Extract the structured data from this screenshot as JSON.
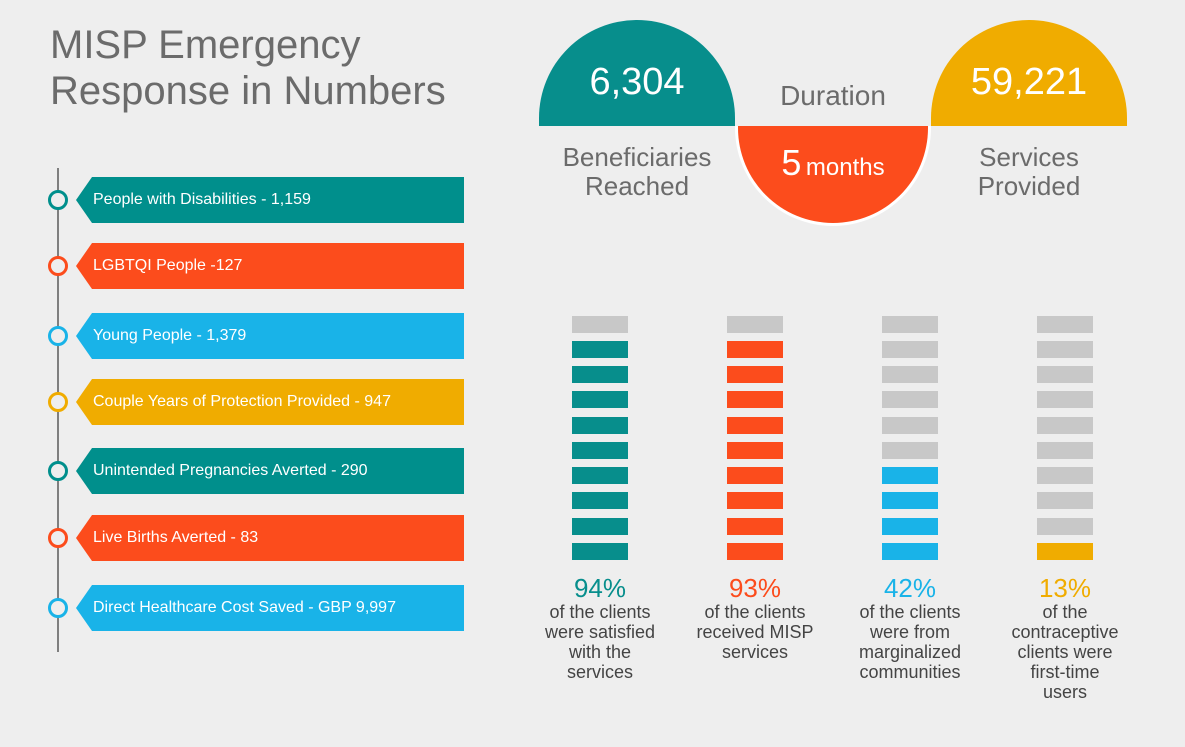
{
  "title": "MISP Emergency\nResponse in Numbers",
  "timeline": [
    {
      "label": "People with Disabilities - 1,159",
      "color": "#008f8c"
    },
    {
      "label": "LGBTQI People -127",
      "color": "#fc4c1c"
    },
    {
      "label": "Young People - 1,379",
      "color": "#19b3e8"
    },
    {
      "label": "Couple Years of Protection Provided - 947",
      "color": "#f0ac00"
    },
    {
      "label": "Unintended Pregnancies Averted - 290",
      "color": "#008f8c"
    },
    {
      "label": "Live Births Averted - 83",
      "color": "#fc4c1c"
    },
    {
      "label": "Direct Healthcare Cost Saved - GBP 9,997",
      "color": "#19b3e8"
    }
  ],
  "stats": {
    "beneficiaries": {
      "value": "6,304",
      "caption": "Beneficiaries\nReached",
      "color": "#078e8c"
    },
    "duration": {
      "label": "Duration",
      "number": "5",
      "unit": "months",
      "color": "#fc4c1c"
    },
    "services": {
      "value": "59,221",
      "caption": "Services\nProvided",
      "color": "#f0ac00"
    }
  },
  "columns": [
    {
      "percent": "94%",
      "filled": 9,
      "color": "#078e8c",
      "text": "of the clients\nwere satisfied\nwith the\nservices"
    },
    {
      "percent": "93%",
      "filled": 9,
      "color": "#fc4c1c",
      "text": "of the clients\nreceived MISP\nservices"
    },
    {
      "percent": "42%",
      "filled": 4,
      "color": "#19b3e8",
      "text": "of the clients\nwere from\nmarginalized\ncommunities"
    },
    {
      "percent": "13%",
      "filled": 1,
      "color": "#f0ac00",
      "text": "of the\ncontraceptive\nclients were\nfirst-time\nusers"
    }
  ],
  "empty_color": "#c8c8c8"
}
